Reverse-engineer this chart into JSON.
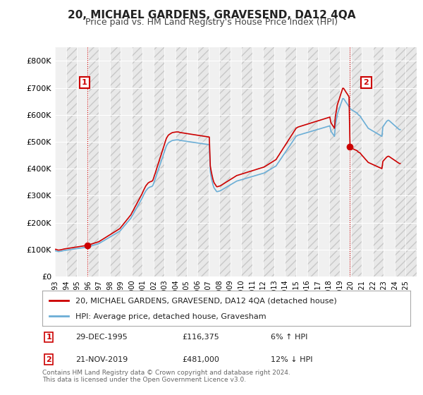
{
  "title": "20, MICHAEL GARDENS, GRAVESEND, DA12 4QA",
  "subtitle": "Price paid vs. HM Land Registry's House Price Index (HPI)",
  "footer": "Contains HM Land Registry data © Crown copyright and database right 2024.\nThis data is licensed under the Open Government Licence v3.0.",
  "legend_line1": "20, MICHAEL GARDENS, GRAVESEND, DA12 4QA (detached house)",
  "legend_line2": "HPI: Average price, detached house, Gravesham",
  "annotation1_label": "1",
  "annotation1_date": "29-DEC-1995",
  "annotation1_price": "£116,375",
  "annotation1_hpi": "6% ↑ HPI",
  "annotation2_label": "2",
  "annotation2_date": "21-NOV-2019",
  "annotation2_price": "£481,000",
  "annotation2_hpi": "12% ↓ HPI",
  "hpi_color": "#6baed6",
  "sale_color": "#cc0000",
  "bg_color": "#ffffff",
  "plot_bg_color": "#f0f0f0",
  "grid_color": "#ffffff",
  "hatch_color": "#d0d0d0",
  "ylim": [
    0,
    850000
  ],
  "yticks": [
    0,
    100000,
    200000,
    300000,
    400000,
    500000,
    600000,
    700000,
    800000
  ],
  "ytick_labels": [
    "£0",
    "£100K",
    "£200K",
    "£300K",
    "£400K",
    "£500K",
    "£600K",
    "£700K",
    "£800K"
  ],
  "xlim_start": 1993,
  "xlim_end": 2026,
  "xticks": [
    1993,
    1994,
    1995,
    1996,
    1997,
    1998,
    1999,
    2000,
    2001,
    2002,
    2003,
    2004,
    2005,
    2006,
    2007,
    2008,
    2009,
    2010,
    2011,
    2012,
    2013,
    2014,
    2015,
    2016,
    2017,
    2018,
    2019,
    2020,
    2021,
    2022,
    2023,
    2024,
    2025
  ],
  "sale1_x": 1995.99,
  "sale1_y": 116375,
  "sale2_x": 2019.9,
  "sale2_y": 481000,
  "hpi_x": [
    1993.0,
    1993.08,
    1993.17,
    1993.25,
    1993.33,
    1993.42,
    1993.5,
    1993.58,
    1993.67,
    1993.75,
    1993.83,
    1993.92,
    1994.0,
    1994.08,
    1994.17,
    1994.25,
    1994.33,
    1994.42,
    1994.5,
    1994.58,
    1994.67,
    1994.75,
    1994.83,
    1994.92,
    1995.0,
    1995.08,
    1995.17,
    1995.25,
    1995.33,
    1995.42,
    1995.5,
    1995.58,
    1995.67,
    1995.75,
    1995.83,
    1995.92,
    1996.0,
    1996.08,
    1996.17,
    1996.25,
    1996.33,
    1996.42,
    1996.5,
    1996.58,
    1996.67,
    1996.75,
    1996.83,
    1996.92,
    1997.0,
    1997.08,
    1997.17,
    1997.25,
    1997.33,
    1997.42,
    1997.5,
    1997.58,
    1997.67,
    1997.75,
    1997.83,
    1997.92,
    1998.0,
    1998.08,
    1998.17,
    1998.25,
    1998.33,
    1998.42,
    1998.5,
    1998.58,
    1998.67,
    1998.75,
    1998.83,
    1998.92,
    1999.0,
    1999.08,
    1999.17,
    1999.25,
    1999.33,
    1999.42,
    1999.5,
    1999.58,
    1999.67,
    1999.75,
    1999.83,
    1999.92,
    2000.0,
    2000.08,
    2000.17,
    2000.25,
    2000.33,
    2000.42,
    2000.5,
    2000.58,
    2000.67,
    2000.75,
    2000.83,
    2000.92,
    2001.0,
    2001.08,
    2001.17,
    2001.25,
    2001.33,
    2001.42,
    2001.5,
    2001.58,
    2001.67,
    2001.75,
    2001.83,
    2001.92,
    2002.0,
    2002.08,
    2002.17,
    2002.25,
    2002.33,
    2002.42,
    2002.5,
    2002.58,
    2002.67,
    2002.75,
    2002.83,
    2002.92,
    2003.0,
    2003.08,
    2003.17,
    2003.25,
    2003.33,
    2003.42,
    2003.5,
    2003.58,
    2003.67,
    2003.75,
    2003.83,
    2003.92,
    2004.0,
    2004.08,
    2004.17,
    2004.25,
    2004.33,
    2004.42,
    2004.5,
    2004.58,
    2004.67,
    2004.75,
    2004.83,
    2004.92,
    2005.0,
    2005.08,
    2005.17,
    2005.25,
    2005.33,
    2005.42,
    2005.5,
    2005.58,
    2005.67,
    2005.75,
    2005.83,
    2005.92,
    2006.0,
    2006.08,
    2006.17,
    2006.25,
    2006.33,
    2006.42,
    2006.5,
    2006.58,
    2006.67,
    2006.75,
    2006.83,
    2006.92,
    2007.0,
    2007.08,
    2007.17,
    2007.25,
    2007.33,
    2007.42,
    2007.5,
    2007.58,
    2007.67,
    2007.75,
    2007.83,
    2007.92,
    2008.0,
    2008.08,
    2008.17,
    2008.25,
    2008.33,
    2008.42,
    2008.5,
    2008.58,
    2008.67,
    2008.75,
    2008.83,
    2008.92,
    2009.0,
    2009.08,
    2009.17,
    2009.25,
    2009.33,
    2009.42,
    2009.5,
    2009.58,
    2009.67,
    2009.75,
    2009.83,
    2009.92,
    2010.0,
    2010.08,
    2010.17,
    2010.25,
    2010.33,
    2010.42,
    2010.5,
    2010.58,
    2010.67,
    2010.75,
    2010.83,
    2010.92,
    2011.0,
    2011.08,
    2011.17,
    2011.25,
    2011.33,
    2011.42,
    2011.5,
    2011.58,
    2011.67,
    2011.75,
    2011.83,
    2011.92,
    2012.0,
    2012.08,
    2012.17,
    2012.25,
    2012.33,
    2012.42,
    2012.5,
    2012.58,
    2012.67,
    2012.75,
    2012.83,
    2012.92,
    2013.0,
    2013.08,
    2013.17,
    2013.25,
    2013.33,
    2013.42,
    2013.5,
    2013.58,
    2013.67,
    2013.75,
    2013.83,
    2013.92,
    2014.0,
    2014.08,
    2014.17,
    2014.25,
    2014.33,
    2014.42,
    2014.5,
    2014.58,
    2014.67,
    2014.75,
    2014.83,
    2014.92,
    2015.0,
    2015.08,
    2015.17,
    2015.25,
    2015.33,
    2015.42,
    2015.5,
    2015.58,
    2015.67,
    2015.75,
    2015.83,
    2015.92,
    2016.0,
    2016.08,
    2016.17,
    2016.25,
    2016.33,
    2016.42,
    2016.5,
    2016.58,
    2016.67,
    2016.75,
    2016.83,
    2016.92,
    2017.0,
    2017.08,
    2017.17,
    2017.25,
    2017.33,
    2017.42,
    2017.5,
    2017.58,
    2017.67,
    2017.75,
    2017.83,
    2017.92,
    2018.0,
    2018.08,
    2018.17,
    2018.25,
    2018.33,
    2018.42,
    2018.5,
    2018.58,
    2018.67,
    2018.75,
    2018.83,
    2018.92,
    2019.0,
    2019.08,
    2019.17,
    2019.25,
    2019.33,
    2019.42,
    2019.5,
    2019.58,
    2019.67,
    2019.75,
    2019.83,
    2019.92,
    2020.0,
    2020.08,
    2020.17,
    2020.25,
    2020.33,
    2020.42,
    2020.5,
    2020.58,
    2020.67,
    2020.75,
    2020.83,
    2020.92,
    2021.0,
    2021.08,
    2021.17,
    2021.25,
    2021.33,
    2021.42,
    2021.5,
    2021.58,
    2021.67,
    2021.75,
    2021.83,
    2021.92,
    2022.0,
    2022.08,
    2022.17,
    2022.25,
    2022.33,
    2022.42,
    2022.5,
    2022.58,
    2022.67,
    2022.75,
    2022.83,
    2022.92,
    2023.0,
    2023.08,
    2023.17,
    2023.25,
    2023.33,
    2023.42,
    2023.5,
    2023.58,
    2023.67,
    2023.75,
    2023.83,
    2023.92,
    2024.0,
    2024.08,
    2024.17,
    2024.25,
    2024.33,
    2024.42,
    2024.5
  ],
  "hpi_y": [
    95000,
    95500,
    94000,
    93000,
    92500,
    93000,
    93500,
    94000,
    95000,
    96000,
    96500,
    97000,
    97500,
    98000,
    98500,
    99000,
    99500,
    100000,
    100500,
    101000,
    101500,
    102000,
    102500,
    103000,
    103500,
    104000,
    104500,
    105000,
    105500,
    106000,
    106500,
    107000,
    107500,
    108000,
    108500,
    109000,
    110000,
    111000,
    112000,
    113000,
    114000,
    115000,
    116000,
    117000,
    118000,
    119000,
    120000,
    121000,
    122000,
    124000,
    126000,
    128000,
    130000,
    132000,
    134000,
    136000,
    138000,
    140000,
    142000,
    144000,
    146000,
    148000,
    150000,
    152000,
    154000,
    156000,
    158000,
    160000,
    162000,
    164000,
    166000,
    168000,
    172000,
    176000,
    180000,
    184000,
    188000,
    192000,
    196000,
    200000,
    204000,
    208000,
    212000,
    216000,
    222000,
    228000,
    234000,
    240000,
    246000,
    252000,
    258000,
    264000,
    270000,
    276000,
    282000,
    288000,
    295000,
    302000,
    309000,
    315000,
    320000,
    324000,
    328000,
    330000,
    332000,
    333000,
    334000,
    337000,
    345000,
    355000,
    365000,
    375000,
    385000,
    395000,
    405000,
    415000,
    425000,
    435000,
    445000,
    455000,
    465000,
    475000,
    485000,
    490000,
    495000,
    498000,
    500000,
    502000,
    504000,
    505000,
    505500,
    506000,
    506500,
    507000,
    507000,
    507000,
    506000,
    505000,
    504500,
    504000,
    503500,
    503000,
    502500,
    502000,
    501500,
    501000,
    500500,
    500000,
    499500,
    499000,
    498500,
    498000,
    497500,
    497000,
    496500,
    496000,
    495500,
    495000,
    494500,
    494000,
    493500,
    493000,
    492500,
    492000,
    491500,
    491000,
    490500,
    490000,
    489500,
    489000,
    388000,
    370000,
    355000,
    340000,
    330000,
    325000,
    320000,
    315000,
    315000,
    316000,
    317000,
    318000,
    320000,
    322000,
    324000,
    326000,
    328000,
    330000,
    332000,
    334000,
    336000,
    338000,
    340000,
    342000,
    344000,
    346000,
    348000,
    350000,
    352000,
    354000,
    355000,
    356000,
    357000,
    358000,
    359000,
    360000,
    361000,
    362000,
    363000,
    364000,
    365000,
    366000,
    367000,
    368000,
    369000,
    370000,
    371000,
    372000,
    373000,
    374000,
    375000,
    376000,
    377000,
    378000,
    379000,
    380000,
    381000,
    382000,
    383000,
    384000,
    386000,
    388000,
    390000,
    392000,
    394000,
    396000,
    398000,
    400000,
    402000,
    404000,
    406000,
    408000,
    410000,
    415000,
    420000,
    425000,
    430000,
    435000,
    440000,
    445000,
    450000,
    455000,
    460000,
    465000,
    470000,
    475000,
    480000,
    485000,
    490000,
    495000,
    500000,
    505000,
    510000,
    515000,
    520000,
    522000,
    524000,
    525000,
    526000,
    527000,
    528000,
    529000,
    530000,
    531000,
    532000,
    533000,
    534000,
    535000,
    536000,
    537000,
    538000,
    539000,
    540000,
    541000,
    542000,
    543000,
    544000,
    545000,
    546000,
    547000,
    548000,
    549000,
    550000,
    551000,
    552000,
    553000,
    554000,
    555000,
    556000,
    557000,
    558000,
    559000,
    540000,
    535000,
    530000,
    525000,
    520000,
    560000,
    580000,
    600000,
    610000,
    620000,
    630000,
    640000,
    650000,
    660000,
    660000,
    655000,
    650000,
    645000,
    640000,
    635000,
    630000,
    625000,
    620000,
    618000,
    616000,
    614000,
    612000,
    610000,
    608000,
    606000,
    600000,
    598000,
    596000,
    590000,
    585000,
    580000,
    575000,
    570000,
    565000,
    560000,
    555000,
    550000,
    548000,
    546000,
    544000,
    542000,
    540000,
    538000,
    536000,
    534000,
    532000,
    530000,
    528000,
    526000,
    524000,
    522000,
    520000,
    555000,
    560000,
    565000,
    570000,
    575000,
    578000,
    580000,
    578000,
    575000,
    572000,
    569000,
    566000,
    563000,
    560000,
    557000,
    554000,
    551000,
    548000,
    545000,
    545000,
    546000,
    547000,
    548000,
    549000,
    550000,
    551000,
    553000
  ]
}
